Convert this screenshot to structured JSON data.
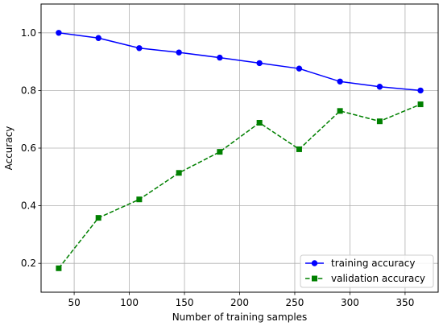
{
  "chart_data": {
    "type": "line",
    "xlabel": "Number of training samples",
    "ylabel": "Accuracy",
    "xlim": [
      20,
      380
    ],
    "ylim": [
      0.1,
      1.1
    ],
    "xticks": [
      50,
      100,
      150,
      200,
      250,
      300,
      350
    ],
    "yticks": [
      0.2,
      0.4,
      0.6,
      0.8,
      1.0
    ],
    "xtick_labels": [
      "50",
      "100",
      "150",
      "200",
      "250",
      "300",
      "350"
    ],
    "ytick_labels": [
      "0.2",
      "0.4",
      "0.6",
      "0.8",
      "1.0"
    ],
    "grid": true,
    "legend_position": "lower-right",
    "x": [
      36,
      72,
      109,
      145,
      182,
      218,
      254,
      291,
      327,
      364
    ],
    "series": [
      {
        "name": "training accuracy",
        "color": "#0000ff",
        "linestyle": "solid",
        "marker": "circle",
        "values": [
          1.0,
          0.982,
          0.947,
          0.932,
          0.914,
          0.895,
          0.876,
          0.831,
          0.813,
          0.8
        ]
      },
      {
        "name": "validation accuracy",
        "color": "#008000",
        "linestyle": "dashed",
        "marker": "square",
        "values": [
          0.183,
          0.358,
          0.422,
          0.514,
          0.587,
          0.688,
          0.596,
          0.729,
          0.693,
          0.752
        ]
      }
    ]
  }
}
